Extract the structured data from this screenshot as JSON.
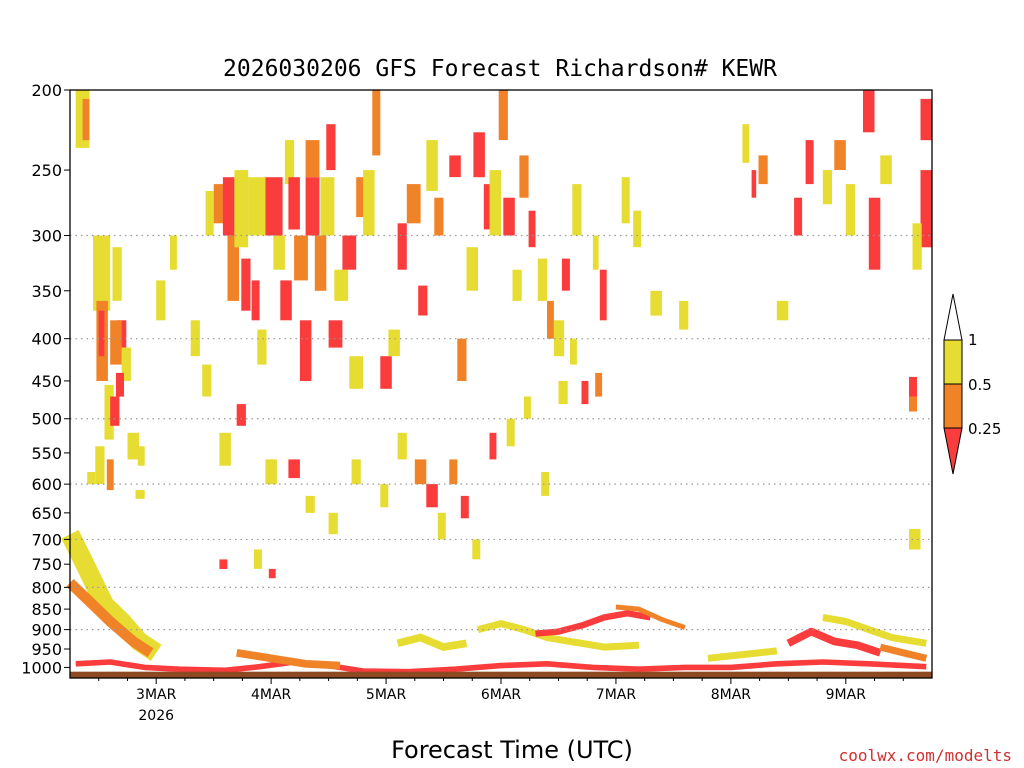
{
  "chart_data": {
    "type": "heatmap",
    "title": "2026030206 GFS Forecast Richardson# KEWR",
    "xlabel": "Forecast Time (UTC)",
    "ylabel": "",
    "y_scale": "log",
    "y_reversed": true,
    "y_range": [
      1030,
      200
    ],
    "y_ticks": [
      200,
      250,
      300,
      350,
      400,
      450,
      500,
      550,
      600,
      650,
      700,
      750,
      800,
      850,
      900,
      950,
      1000
    ],
    "y_grid": "dotted",
    "x_range": [
      2.25,
      9.75
    ],
    "x_ticks": [
      {
        "day": 3,
        "label": "3MAR",
        "sub": "2026"
      },
      {
        "day": 4,
        "label": "4MAR",
        "sub": ""
      },
      {
        "day": 5,
        "label": "5MAR",
        "sub": ""
      },
      {
        "day": 6,
        "label": "6MAR",
        "sub": ""
      },
      {
        "day": 7,
        "label": "7MAR",
        "sub": ""
      },
      {
        "day": 8,
        "label": "8MAR",
        "sub": ""
      },
      {
        "day": 9,
        "label": "9MAR",
        "sub": ""
      }
    ],
    "legend": {
      "placement": "right",
      "bins": [
        {
          "range": ">1",
          "color": "#ffffff"
        },
        {
          "range": "0.5-1",
          "color": "#e6dc32"
        },
        {
          "range": "0.25-0.5",
          "color": "#f08228"
        },
        {
          "range": "<0.25",
          "color": "#fa3c3c"
        }
      ],
      "labels": [
        "1",
        "0.5",
        "0.25"
      ]
    },
    "ground_color": "#8c4a22",
    "cells": [
      [
        2.3,
        2.42,
        200,
        235,
        "y"
      ],
      [
        2.36,
        2.42,
        205,
        230,
        "o"
      ],
      [
        2.45,
        2.6,
        300,
        370,
        "y"
      ],
      [
        2.48,
        2.58,
        360,
        450,
        "o"
      ],
      [
        2.5,
        2.55,
        370,
        420,
        "r"
      ],
      [
        2.55,
        2.63,
        455,
        530,
        "y"
      ],
      [
        2.47,
        2.55,
        540,
        600,
        "y"
      ],
      [
        2.57,
        2.63,
        560,
        610,
        "o"
      ],
      [
        2.4,
        2.47,
        580,
        600,
        "y"
      ],
      [
        2.62,
        2.7,
        310,
        360,
        "y"
      ],
      [
        2.6,
        2.68,
        470,
        510,
        "r"
      ],
      [
        2.66,
        2.74,
        380,
        410,
        "r"
      ],
      [
        2.7,
        2.78,
        410,
        450,
        "y"
      ],
      [
        2.82,
        2.9,
        610,
        625,
        "y"
      ],
      [
        2.84,
        2.9,
        540,
        570,
        "y"
      ],
      [
        3.0,
        3.08,
        340,
        380,
        "y"
      ],
      [
        3.12,
        3.18,
        300,
        330,
        "y"
      ],
      [
        3.43,
        3.5,
        265,
        300,
        "y"
      ],
      [
        3.5,
        3.6,
        260,
        290,
        "o"
      ],
      [
        3.58,
        3.68,
        255,
        300,
        "r"
      ],
      [
        3.62,
        3.72,
        300,
        360,
        "o"
      ],
      [
        3.68,
        3.8,
        250,
        310,
        "y"
      ],
      [
        3.74,
        3.82,
        320,
        370,
        "r"
      ],
      [
        3.8,
        3.95,
        255,
        300,
        "y"
      ],
      [
        3.83,
        3.9,
        340,
        380,
        "r"
      ],
      [
        3.88,
        3.96,
        390,
        430,
        "y"
      ],
      [
        3.95,
        4.1,
        255,
        300,
        "r"
      ],
      [
        4.02,
        4.12,
        300,
        330,
        "y"
      ],
      [
        4.08,
        4.18,
        340,
        380,
        "r"
      ],
      [
        4.12,
        4.2,
        230,
        260,
        "y"
      ],
      [
        4.15,
        4.25,
        255,
        295,
        "r"
      ],
      [
        4.2,
        4.32,
        300,
        340,
        "o"
      ],
      [
        4.25,
        4.35,
        380,
        450,
        "r"
      ],
      [
        4.3,
        4.42,
        230,
        255,
        "o"
      ],
      [
        4.3,
        4.42,
        255,
        300,
        "r"
      ],
      [
        4.38,
        4.48,
        300,
        350,
        "o"
      ],
      [
        4.43,
        4.55,
        255,
        300,
        "y"
      ],
      [
        4.48,
        4.56,
        220,
        250,
        "r"
      ],
      [
        4.5,
        4.62,
        380,
        410,
        "r"
      ],
      [
        4.55,
        4.67,
        330,
        360,
        "y"
      ],
      [
        4.62,
        4.74,
        300,
        330,
        "r"
      ],
      [
        4.68,
        4.8,
        420,
        460,
        "y"
      ],
      [
        4.74,
        4.84,
        255,
        285,
        "o"
      ],
      [
        4.8,
        4.9,
        250,
        300,
        "y"
      ],
      [
        4.88,
        4.95,
        200,
        240,
        "o"
      ],
      [
        4.95,
        5.05,
        420,
        460,
        "r"
      ],
      [
        5.02,
        5.12,
        390,
        420,
        "y"
      ],
      [
        5.1,
        5.18,
        290,
        330,
        "r"
      ],
      [
        5.18,
        5.3,
        260,
        290,
        "o"
      ],
      [
        5.28,
        5.36,
        345,
        375,
        "r"
      ],
      [
        5.35,
        5.45,
        230,
        265,
        "y"
      ],
      [
        5.42,
        5.5,
        270,
        300,
        "o"
      ],
      [
        5.55,
        5.65,
        240,
        255,
        "r"
      ],
      [
        5.62,
        5.7,
        400,
        450,
        "o"
      ],
      [
        5.7,
        5.8,
        310,
        350,
        "y"
      ],
      [
        5.76,
        5.86,
        225,
        255,
        "r"
      ],
      [
        5.85,
        5.92,
        260,
        295,
        "r"
      ],
      [
        5.9,
        6.0,
        250,
        300,
        "y"
      ],
      [
        5.98,
        6.06,
        200,
        230,
        "o"
      ],
      [
        6.02,
        6.12,
        270,
        300,
        "r"
      ],
      [
        6.1,
        6.18,
        330,
        360,
        "y"
      ],
      [
        6.16,
        6.24,
        240,
        270,
        "o"
      ],
      [
        6.24,
        6.3,
        280,
        310,
        "r"
      ],
      [
        6.32,
        6.4,
        320,
        360,
        "y"
      ],
      [
        6.4,
        6.46,
        360,
        400,
        "o"
      ],
      [
        6.46,
        6.55,
        380,
        420,
        "y"
      ],
      [
        6.53,
        6.6,
        320,
        350,
        "r"
      ],
      [
        6.62,
        6.7,
        260,
        300,
        "y"
      ],
      [
        6.8,
        6.85,
        300,
        330,
        "y"
      ],
      [
        6.86,
        6.92,
        330,
        380,
        "r"
      ],
      [
        7.05,
        7.12,
        255,
        290,
        "y"
      ],
      [
        7.15,
        7.22,
        280,
        310,
        "y"
      ],
      [
        7.3,
        7.4,
        350,
        375,
        "y"
      ],
      [
        7.55,
        7.63,
        360,
        390,
        "y"
      ],
      [
        8.1,
        8.16,
        220,
        245,
        "y"
      ],
      [
        8.18,
        8.22,
        250,
        270,
        "r"
      ],
      [
        8.24,
        8.32,
        240,
        260,
        "o"
      ],
      [
        8.4,
        8.5,
        360,
        380,
        "y"
      ],
      [
        8.55,
        8.62,
        270,
        300,
        "r"
      ],
      [
        8.65,
        8.72,
        230,
        260,
        "r"
      ],
      [
        8.8,
        8.88,
        250,
        275,
        "y"
      ],
      [
        8.9,
        9.0,
        230,
        250,
        "o"
      ],
      [
        9.0,
        9.08,
        260,
        300,
        "y"
      ],
      [
        9.15,
        9.25,
        200,
        225,
        "r"
      ],
      [
        9.2,
        9.3,
        270,
        330,
        "r"
      ],
      [
        9.3,
        9.4,
        240,
        260,
        "y"
      ],
      [
        9.55,
        9.62,
        445,
        470,
        "r"
      ],
      [
        9.55,
        9.62,
        470,
        490,
        "o"
      ],
      [
        9.55,
        9.65,
        680,
        720,
        "y"
      ],
      [
        9.65,
        9.75,
        205,
        230,
        "r"
      ],
      [
        9.65,
        9.75,
        250,
        310,
        "r"
      ],
      [
        9.58,
        9.66,
        290,
        330,
        "y"
      ],
      [
        2.6,
        2.7,
        380,
        430,
        "o"
      ],
      [
        2.65,
        2.72,
        440,
        470,
        "r"
      ],
      [
        2.75,
        2.85,
        520,
        560,
        "y"
      ],
      [
        3.3,
        3.38,
        380,
        420,
        "y"
      ],
      [
        3.4,
        3.48,
        430,
        470,
        "y"
      ],
      [
        3.55,
        3.65,
        520,
        570,
        "y"
      ],
      [
        3.7,
        3.78,
        480,
        510,
        "r"
      ],
      [
        3.95,
        4.05,
        560,
        600,
        "y"
      ],
      [
        4.15,
        4.25,
        560,
        590,
        "r"
      ],
      [
        4.3,
        4.38,
        620,
        650,
        "y"
      ],
      [
        4.5,
        4.58,
        650,
        690,
        "y"
      ],
      [
        4.7,
        4.78,
        560,
        600,
        "y"
      ],
      [
        4.95,
        5.02,
        600,
        640,
        "y"
      ],
      [
        5.1,
        5.18,
        520,
        560,
        "y"
      ],
      [
        5.25,
        5.35,
        560,
        600,
        "o"
      ],
      [
        5.35,
        5.45,
        600,
        640,
        "r"
      ],
      [
        5.45,
        5.52,
        650,
        700,
        "y"
      ],
      [
        5.55,
        5.62,
        560,
        600,
        "o"
      ],
      [
        5.65,
        5.72,
        620,
        660,
        "r"
      ],
      [
        5.75,
        5.82,
        700,
        740,
        "y"
      ],
      [
        5.9,
        5.96,
        520,
        560,
        "r"
      ],
      [
        6.05,
        6.12,
        500,
        540,
        "y"
      ],
      [
        6.2,
        6.26,
        470,
        500,
        "y"
      ],
      [
        6.35,
        6.42,
        580,
        620,
        "y"
      ],
      [
        6.5,
        6.58,
        450,
        480,
        "y"
      ],
      [
        6.6,
        6.66,
        400,
        430,
        "y"
      ],
      [
        6.7,
        6.76,
        450,
        480,
        "r"
      ],
      [
        6.82,
        6.88,
        440,
        470,
        "o"
      ],
      [
        3.55,
        3.62,
        740,
        760,
        "r"
      ],
      [
        3.85,
        3.92,
        720,
        760,
        "y"
      ],
      [
        3.98,
        4.04,
        760,
        780,
        "r"
      ]
    ],
    "bands": [
      {
        "color": "y",
        "pts": [
          [
            2.25,
            690
          ],
          [
            2.4,
            760
          ],
          [
            2.55,
            840
          ],
          [
            2.7,
            880
          ],
          [
            2.85,
            930
          ],
          [
            3.0,
            960
          ]
        ],
        "thick": 55
      },
      {
        "color": "o",
        "pts": [
          [
            2.25,
            790
          ],
          [
            2.45,
            840
          ],
          [
            2.6,
            880
          ],
          [
            2.8,
            930
          ],
          [
            2.95,
            960
          ]
        ],
        "thick": 30
      },
      {
        "color": "r",
        "pts": [
          [
            2.3,
            990
          ],
          [
            2.6,
            985
          ],
          [
            2.9,
            1000
          ],
          [
            3.2,
            1005
          ],
          [
            3.6,
            1008
          ],
          [
            3.9,
            998
          ],
          [
            4.2,
            985
          ],
          [
            4.5,
            995
          ],
          [
            4.8,
            1010
          ],
          [
            5.2,
            1012
          ],
          [
            5.6,
            1005
          ],
          [
            6.0,
            995
          ],
          [
            6.4,
            990
          ],
          [
            6.8,
            1000
          ],
          [
            7.2,
            1005
          ],
          [
            7.6,
            1000
          ],
          [
            8.0,
            1000
          ],
          [
            8.4,
            990
          ],
          [
            8.8,
            985
          ],
          [
            9.2,
            990
          ],
          [
            9.7,
            998
          ]
        ],
        "thick": 16
      },
      {
        "color": "o",
        "pts": [
          [
            3.7,
            960
          ],
          [
            4.0,
            975
          ],
          [
            4.3,
            990
          ],
          [
            4.6,
            995
          ]
        ],
        "thick": 22
      },
      {
        "color": "y",
        "pts": [
          [
            5.1,
            935
          ],
          [
            5.3,
            920
          ],
          [
            5.5,
            945
          ],
          [
            5.7,
            935
          ]
        ],
        "thick": 22
      },
      {
        "color": "y",
        "pts": [
          [
            5.8,
            900
          ],
          [
            6.0,
            885
          ],
          [
            6.2,
            900
          ],
          [
            6.4,
            920
          ],
          [
            6.6,
            930
          ],
          [
            6.9,
            945
          ],
          [
            7.2,
            940
          ]
        ],
        "thick": 20
      },
      {
        "color": "r",
        "pts": [
          [
            6.3,
            910
          ],
          [
            6.5,
            905
          ],
          [
            6.7,
            890
          ],
          [
            6.9,
            870
          ],
          [
            7.1,
            860
          ],
          [
            7.3,
            870
          ]
        ],
        "thick": 18
      },
      {
        "color": "o",
        "pts": [
          [
            7.0,
            845
          ],
          [
            7.2,
            850
          ],
          [
            7.4,
            875
          ],
          [
            7.6,
            895
          ]
        ],
        "thick": 14
      },
      {
        "color": "y",
        "pts": [
          [
            7.8,
            975
          ],
          [
            8.1,
            965
          ],
          [
            8.4,
            955
          ]
        ],
        "thick": 20
      },
      {
        "color": "r",
        "pts": [
          [
            8.5,
            935
          ],
          [
            8.7,
            905
          ],
          [
            8.9,
            930
          ],
          [
            9.1,
            940
          ],
          [
            9.3,
            960
          ]
        ],
        "thick": 22
      },
      {
        "color": "y",
        "pts": [
          [
            8.8,
            870
          ],
          [
            9.0,
            880
          ],
          [
            9.2,
            900
          ],
          [
            9.4,
            920
          ],
          [
            9.7,
            935
          ]
        ],
        "thick": 20
      },
      {
        "color": "o",
        "pts": [
          [
            9.3,
            945
          ],
          [
            9.5,
            960
          ],
          [
            9.7,
            975
          ]
        ],
        "thick": 20
      }
    ]
  },
  "footer": {
    "source": "coolwx.com/modelts"
  }
}
